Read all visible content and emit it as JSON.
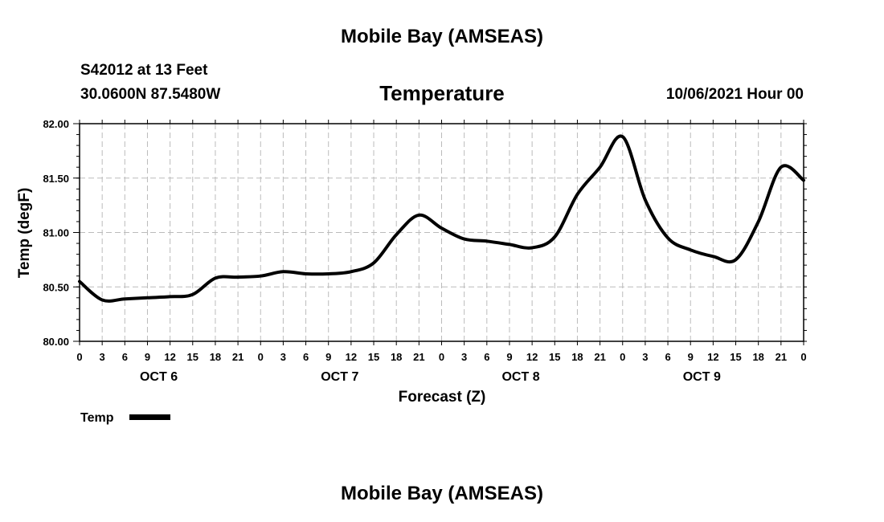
{
  "header": {
    "title": "Mobile Bay (AMSEAS)",
    "station": "S42012 at 13 Feet",
    "coords": "30.0600N  87.5480W",
    "variable": "Temperature",
    "datetime": "10/06/2021 Hour 00"
  },
  "footer": {
    "title": "Mobile Bay (AMSEAS)"
  },
  "legend": {
    "label": "Temp",
    "color": "#000000"
  },
  "chart_data": {
    "type": "line",
    "title": "Temperature",
    "xlabel": "Forecast (Z)",
    "ylabel": "Temp (degF)",
    "ylim": [
      80.0,
      82.0
    ],
    "xlim": [
      0,
      96
    ],
    "grid": true,
    "yticks": [
      "80.00",
      "80.50",
      "81.00",
      "81.50",
      "82.00"
    ],
    "xtick_labels": [
      "0",
      "3",
      "6",
      "9",
      "12",
      "15",
      "18",
      "21",
      "0",
      "3",
      "6",
      "9",
      "12",
      "15",
      "18",
      "21",
      "0",
      "3",
      "6",
      "9",
      "12",
      "15",
      "18",
      "21",
      "0",
      "3",
      "6",
      "9",
      "12",
      "15",
      "18",
      "21",
      "0"
    ],
    "day_labels": [
      "OCT 6",
      "OCT 7",
      "OCT 8",
      "OCT 9"
    ],
    "series": [
      {
        "name": "Temp",
        "color": "#000000",
        "x": [
          0,
          3,
          6,
          9,
          12,
          15,
          18,
          21,
          24,
          27,
          30,
          33,
          36,
          39,
          42,
          45,
          48,
          51,
          54,
          57,
          60,
          63,
          66,
          69,
          72,
          75,
          78,
          81,
          84,
          87,
          90,
          93,
          96
        ],
        "y": [
          80.55,
          80.38,
          80.39,
          80.4,
          80.41,
          80.43,
          80.58,
          80.59,
          80.6,
          80.64,
          80.62,
          80.62,
          80.64,
          80.72,
          80.98,
          81.16,
          81.04,
          80.94,
          80.92,
          80.89,
          80.86,
          80.96,
          81.35,
          81.6,
          81.88,
          81.3,
          80.95,
          80.84,
          80.78,
          80.75,
          81.1,
          81.6,
          81.48
        ]
      }
    ]
  }
}
